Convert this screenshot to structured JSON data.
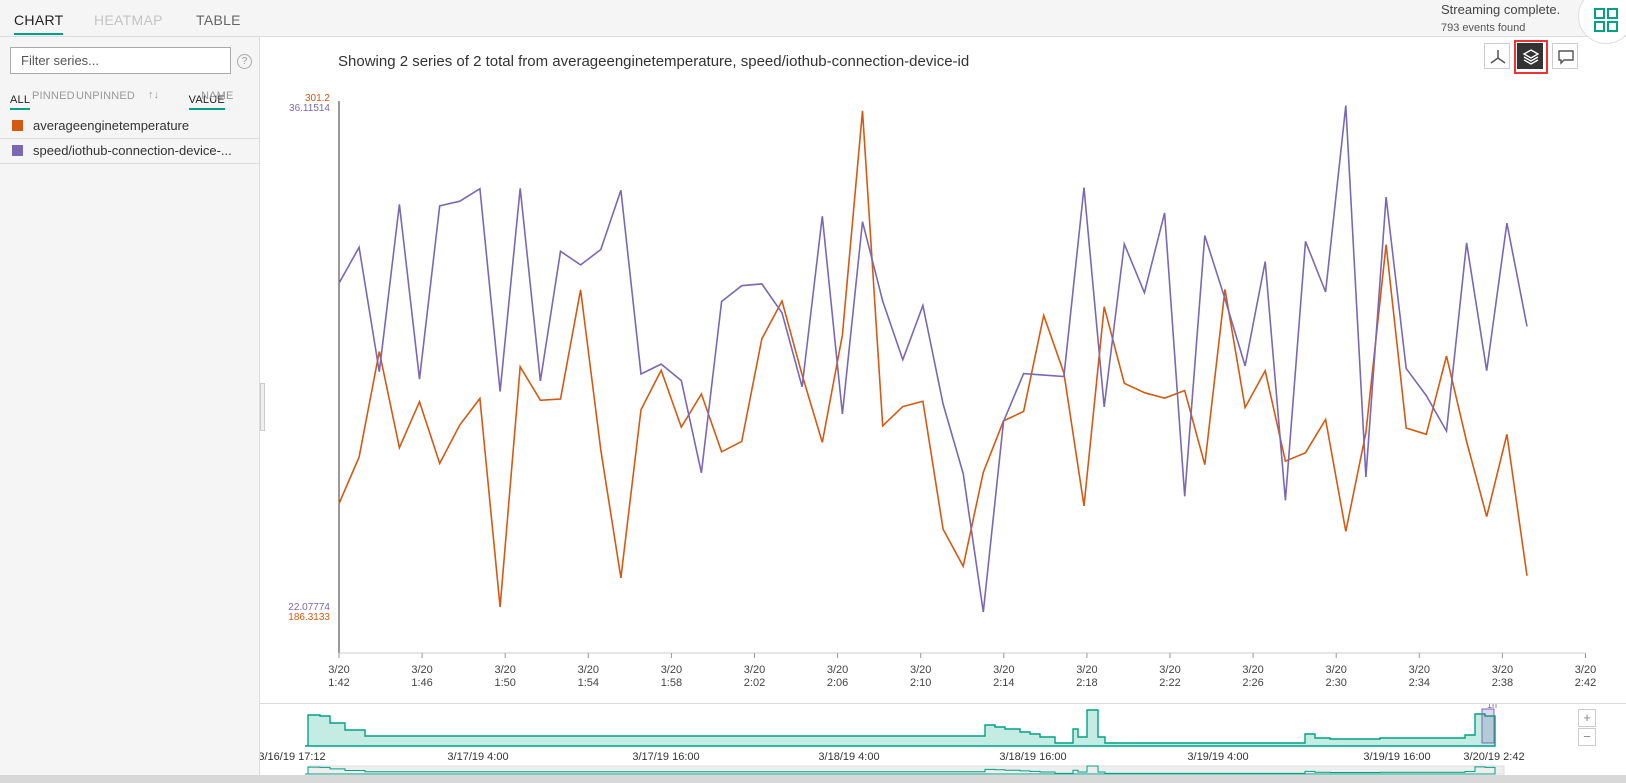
{
  "tabs": [
    {
      "label": "CHART",
      "state": "active"
    },
    {
      "label": "HEATMAP",
      "state": "disabled"
    },
    {
      "label": "TABLE",
      "state": "normal"
    }
  ],
  "status": {
    "title": "Streaming complete.",
    "count": "793 events found"
  },
  "sidebar": {
    "filter_placeholder": "Filter series...",
    "help_label": "?",
    "filters": [
      "ALL",
      "PINNED",
      "UNPINNED"
    ],
    "sorts": [
      "VALUE",
      "NAME"
    ],
    "series": [
      {
        "name": "averageenginetemperature",
        "color": "#d45a12"
      },
      {
        "name": "speed/iothub-connection-device-...",
        "color": "#7a68b4"
      }
    ]
  },
  "chart_title": "Showing 2 series of 2 total from averageenginetemperature, speed/iothub-connection-device-id",
  "colors": {
    "accent": "#00a185",
    "orange": "#d45a12",
    "purple": "#7a68b4"
  },
  "chart_data": {
    "type": "line",
    "x_tick_labels": [
      [
        "3/20",
        "1:42"
      ],
      [
        "3/20",
        "1:46"
      ],
      [
        "3/20",
        "1:50"
      ],
      [
        "3/20",
        "1:54"
      ],
      [
        "3/20",
        "1:58"
      ],
      [
        "3/20",
        "2:02"
      ],
      [
        "3/20",
        "2:06"
      ],
      [
        "3/20",
        "2:10"
      ],
      [
        "3/20",
        "2:14"
      ],
      [
        "3/20",
        "2:18"
      ],
      [
        "3/20",
        "2:22"
      ],
      [
        "3/20",
        "2:26"
      ],
      [
        "3/20",
        "2:30"
      ],
      [
        "3/20",
        "2:34"
      ],
      [
        "3/20",
        "2:38"
      ],
      [
        "3/20",
        "2:42"
      ]
    ],
    "xlim": [
      0,
      60
    ],
    "x": [
      0.5,
      1.5,
      2.5,
      3.5,
      4.5,
      5.5,
      6.5,
      7.5,
      8.5,
      9.5,
      10.5,
      11.5,
      12.5,
      13.5,
      14.5,
      15.5,
      16.5,
      17.5,
      18.5,
      19.5,
      20.5,
      21.5,
      22.5,
      23.5,
      24.5,
      25.5,
      26.5,
      27.5,
      28.5,
      29.5,
      30.5,
      31.5,
      32.5,
      33.5,
      34.5,
      35.5,
      36.5,
      37.5,
      38.5,
      39.5,
      40.5,
      41.5,
      42.5,
      43.5,
      44.5,
      45.5,
      46.5,
      47.5,
      48.5,
      49.5,
      50.5,
      51.5,
      52.5,
      53.5,
      54.5,
      55.5,
      56.5,
      57.5,
      58.5,
      59.5
    ],
    "series": [
      {
        "name": "averageenginetemperature",
        "axis_max": "301.2",
        "axis_min": "186.3133",
        "ylim": [
          186.3133,
          301.2
        ],
        "values": [
          211.2,
          221.6,
          245.2,
          223.7,
          234.0,
          220.2,
          228.8,
          234.7,
          188.1,
          241.8,
          234.3,
          234.6,
          259.0,
          223.2,
          194.6,
          232.2,
          241.0,
          228.3,
          235.7,
          222.8,
          225.1,
          248.0,
          256.5,
          240.0,
          224.9,
          248.9,
          299.0,
          228.6,
          232.9,
          234.1,
          205.5,
          197.2,
          218.2,
          229.7,
          231.8,
          253.3,
          240.4,
          210.7,
          255.2,
          238.1,
          236.0,
          234.8,
          236.5,
          219.9,
          259.1,
          232.7,
          240.9,
          220.7,
          222.6,
          230.0,
          205.0,
          227.1,
          269.1,
          228.1,
          226.7,
          244.2,
          225.1,
          208.3,
          226.7,
          195.1
        ]
      },
      {
        "name": "speed/iothub-connection-device-...",
        "axis_max": "36.11514",
        "axis_min": "22.07774",
        "ylim": [
          22.07774,
          36.11514
        ],
        "values": [
          31.14,
          32.12,
          28.72,
          33.29,
          28.52,
          33.25,
          33.38,
          33.72,
          28.18,
          33.73,
          28.47,
          32.01,
          31.64,
          32.06,
          33.68,
          28.66,
          28.93,
          28.48,
          25.96,
          30.64,
          31.07,
          31.12,
          30.33,
          28.31,
          32.97,
          27.57,
          32.82,
          30.65,
          29.05,
          30.53,
          27.84,
          25.94,
          22.16,
          27.36,
          28.67,
          28.63,
          28.59,
          33.75,
          27.76,
          32.21,
          30.88,
          33.06,
          25.32,
          32.44,
          30.71,
          28.88,
          31.73,
          25.21,
          32.28,
          30.9,
          35.99,
          25.85,
          33.49,
          28.81,
          28.07,
          27.1,
          32.24,
          28.75,
          32.78,
          29.96
        ]
      }
    ],
    "brush_axis": [
      "3/16/19 17:12",
      "3/17/19 4:00",
      "3/17/19 16:00",
      "3/18/19 4:00",
      "3/18/19 16:00",
      "3/19/19 4:00",
      "3/19/19 16:00",
      "3/20/19 2:42"
    ],
    "brush_badge": "1h",
    "grid": false
  }
}
